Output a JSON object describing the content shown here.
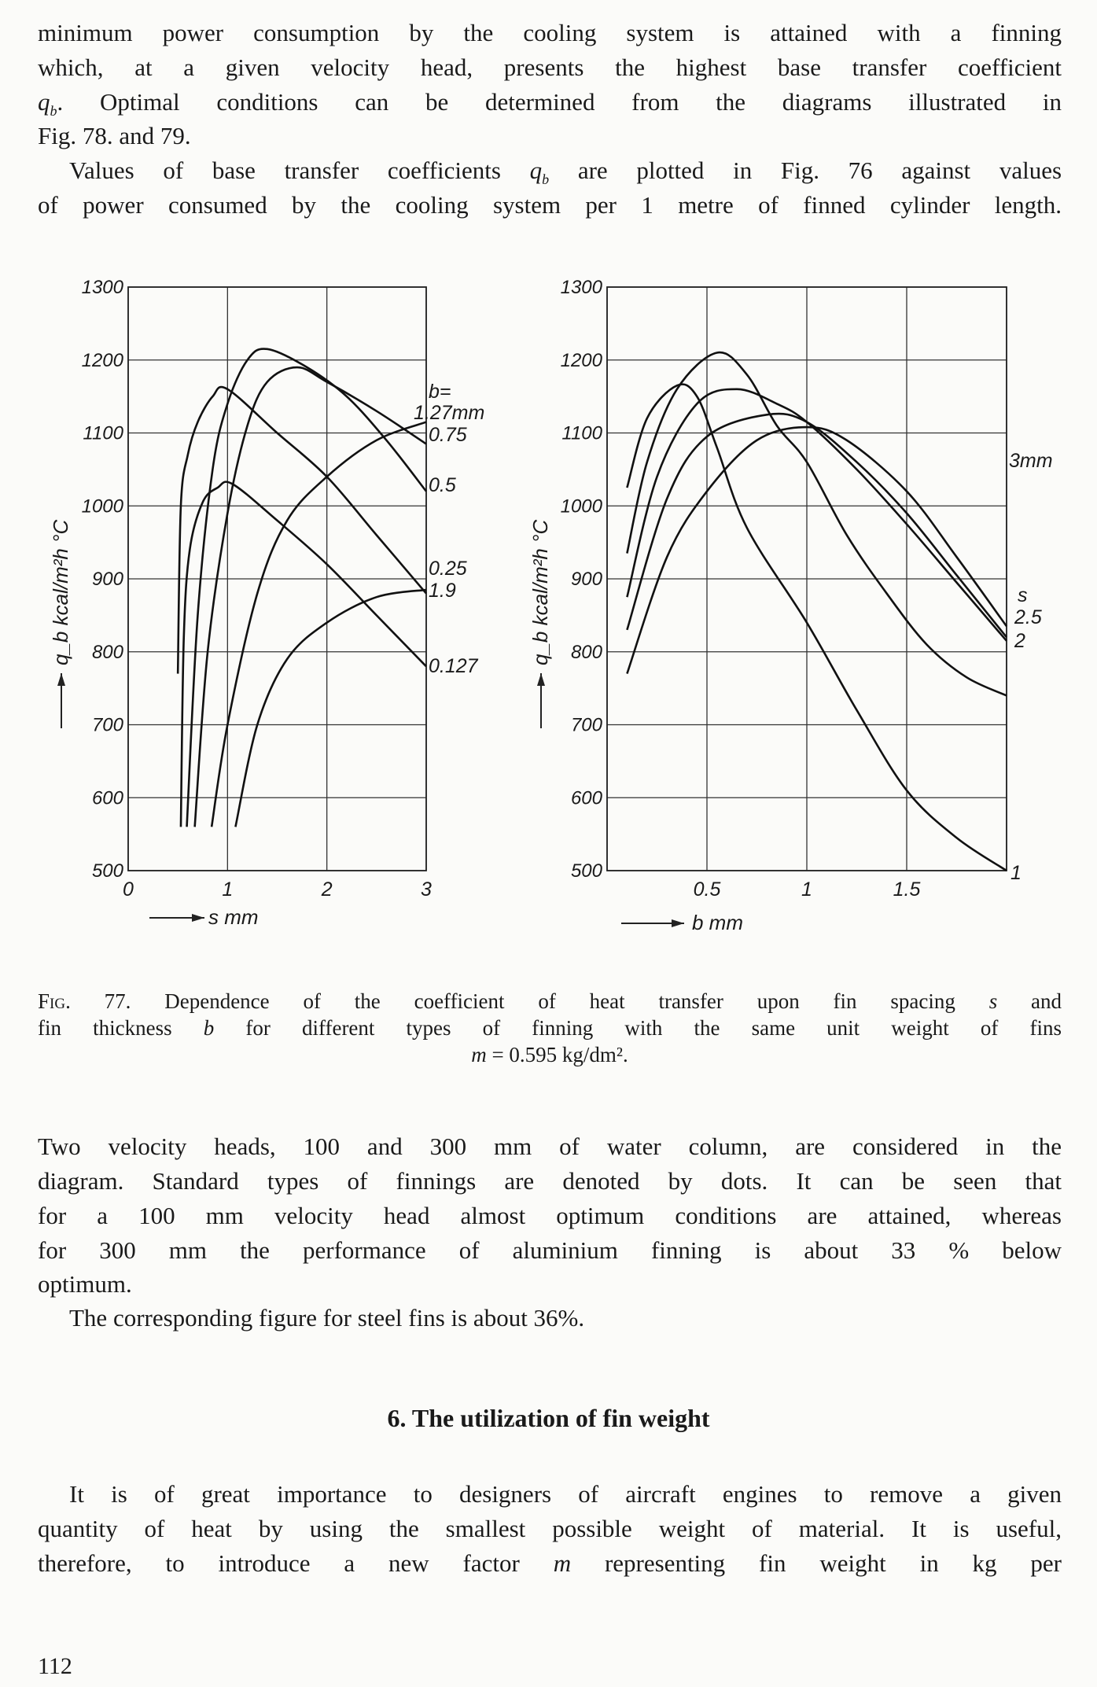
{
  "top_paragraph": {
    "lines": [
      "minimum power consumption by the cooling system is attained with a finning",
      "which, at a given velocity head, presents the highest base transfer coefficient",
      "q_b. Optimal conditions can be determined from the diagrams illustrated in",
      "Fig. 78. and 79."
    ],
    "q_symbol": "q",
    "q_sub": "b",
    "line3_rest": ". Optimal conditions can be determined from the diagrams illustrated in"
  },
  "second_paragraph": {
    "line1_a": "Values of base transfer coefficients",
    "line1_b": "are plotted in Fig. 76 against values",
    "line2": "of power consumed by the cooling system per 1 metre of finned cylinder length."
  },
  "caption": {
    "fig_label": "Fig.",
    "line1_a": "77. Dependence of the coefficient of heat transfer upon fin spacing",
    "line1_s": "s",
    "line1_b": "and",
    "line2_a": "fin thickness",
    "line2_b": "b",
    "line2_c": "for different types of finning with the same unit weight of fins",
    "line3_m": "m",
    "line3_rest": "= 0.595 kg/dm²."
  },
  "body_paragraph": {
    "lines": [
      "Two velocity heads, 100 and 300 mm of water column, are considered in the",
      "diagram. Standard types of finnings are denoted by dots. It can be seen that",
      "for a 100 mm velocity head almost optimum conditions are attained, whereas",
      "for 300 mm the performance of aluminium finning is about 33 % below",
      "optimum."
    ],
    "line_steel": "The corresponding figure for steel fins is about 36%."
  },
  "section_heading": "6. The utilization of fin weight",
  "last_paragraph": {
    "lines": [
      "It is of great importance to designers of aircraft engines to remove a given",
      "quantity of heat by using the smallest possible weight of material. It is useful,",
      "therefore, to introduce a new factor m representing fin weight in kg per"
    ],
    "line3_a": "therefore, to introduce a new factor",
    "line3_m": "m",
    "line3_b": "representing fin weight in kg per"
  },
  "page_number": "112",
  "chart_data": [
    {
      "type": "line",
      "xlabel": "s mm",
      "ylabel": "q_b kcal/m²h °C",
      "xlim": [
        0,
        3
      ],
      "ylim": [
        500,
        1300
      ],
      "xticks": [
        "0",
        "1",
        "2",
        "3"
      ],
      "yticks": [
        "500",
        "600",
        "700",
        "800",
        "900",
        "1000",
        "1100",
        "1200",
        "1300"
      ],
      "grid": true,
      "curve_labels": [
        "b=",
        "1.27mm",
        "0.75",
        "0.5",
        "0.25",
        "1.9",
        "0.127"
      ],
      "series": [
        {
          "name": "0.127",
          "x": [
            0.53,
            0.56,
            0.62,
            0.75,
            0.9,
            1.05,
            1.5,
            2,
            2.5,
            3
          ],
          "y": [
            560,
            820,
            940,
            1005,
            1025,
            1030,
            980,
            920,
            850,
            780
          ]
        },
        {
          "name": "0.25",
          "x": [
            0.5,
            0.53,
            0.6,
            0.7,
            0.85,
            1.0,
            1.5,
            2,
            2.5,
            3
          ],
          "y": [
            770,
            1000,
            1070,
            1115,
            1150,
            1160,
            1100,
            1040,
            960,
            880
          ]
        },
        {
          "name": "0.5",
          "x": [
            0.59,
            0.7,
            0.85,
            1.0,
            1.2,
            1.4,
            1.8,
            2.2,
            2.6,
            3
          ],
          "y": [
            560,
            850,
            1050,
            1140,
            1200,
            1215,
            1190,
            1150,
            1090,
            1020
          ]
        },
        {
          "name": "0.75",
          "x": [
            0.67,
            0.8,
            1.0,
            1.2,
            1.4,
            1.7,
            2,
            2.5,
            3
          ],
          "y": [
            560,
            800,
            990,
            1110,
            1170,
            1190,
            1170,
            1130,
            1085
          ]
        },
        {
          "name": "1.27mm",
          "x": [
            0.84,
            1.0,
            1.3,
            1.6,
            2,
            2.5,
            3
          ],
          "y": [
            560,
            700,
            880,
            980,
            1040,
            1090,
            1115
          ]
        },
        {
          "name": "1.9",
          "x": [
            1.08,
            1.3,
            1.6,
            2,
            2.5,
            3
          ],
          "y": [
            560,
            700,
            790,
            840,
            875,
            885
          ]
        }
      ]
    },
    {
      "type": "line",
      "xlabel": "b mm",
      "ylabel": "q_b kcal/m²h °C",
      "xlim": [
        0,
        2
      ],
      "ylim": [
        500,
        1300
      ],
      "xticks": [
        "0.5",
        "1",
        "1.5"
      ],
      "yticks": [
        "500",
        "600",
        "700",
        "800",
        "900",
        "1000",
        "1100",
        "1200",
        "1300"
      ],
      "grid": true,
      "curve_labels": [
        "3mm",
        "s",
        "2.5",
        "2",
        "1"
      ],
      "series": [
        {
          "x": [
            0.1,
            0.2,
            0.35,
            0.45,
            0.55,
            0.7,
            1.0,
            1.25,
            1.5,
            1.75,
            2.0
          ],
          "y": [
            1025,
            1120,
            1165,
            1150,
            1080,
            970,
            840,
            720,
            610,
            545,
            500
          ]
        },
        {
          "x": [
            0.1,
            0.2,
            0.35,
            0.55,
            0.7,
            0.85,
            1.0,
            1.2,
            1.4,
            1.6,
            1.8,
            2.0
          ],
          "y": [
            935,
            1060,
            1160,
            1210,
            1180,
            1110,
            1060,
            960,
            880,
            810,
            765,
            740
          ]
        },
        {
          "x": [
            0.1,
            0.25,
            0.45,
            0.65,
            0.85,
            1.0,
            1.25,
            1.5,
            1.75,
            2.0
          ],
          "y": [
            875,
            1040,
            1140,
            1160,
            1140,
            1115,
            1050,
            975,
            895,
            815
          ]
        },
        {
          "x": [
            0.1,
            0.3,
            0.5,
            0.8,
            1.0,
            1.25,
            1.5,
            1.75,
            2.0
          ],
          "y": [
            830,
            1010,
            1095,
            1125,
            1115,
            1060,
            990,
            905,
            820
          ]
        },
        {
          "x": [
            0.1,
            0.3,
            0.5,
            0.75,
            1.0,
            1.2,
            1.5,
            1.75,
            2.0
          ],
          "y": [
            770,
            930,
            1020,
            1090,
            1108,
            1090,
            1020,
            930,
            835
          ]
        }
      ]
    }
  ]
}
